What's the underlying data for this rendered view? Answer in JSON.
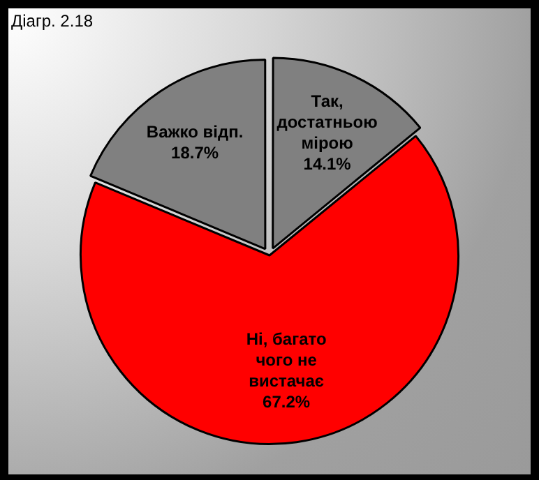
{
  "chart_data": {
    "type": "pie",
    "title": "Діагр. 2.18",
    "categories": [
      "Так, достатньою мірою",
      "Ні, багато чого не вистачає",
      "Важко відп."
    ],
    "values": [
      14.1,
      67.2,
      18.7
    ],
    "colors": [
      "#808080",
      "#ff0000",
      "#808080"
    ],
    "value_labels": [
      "14.1%",
      "67.2%",
      "18.7%"
    ],
    "legend": false
  }
}
